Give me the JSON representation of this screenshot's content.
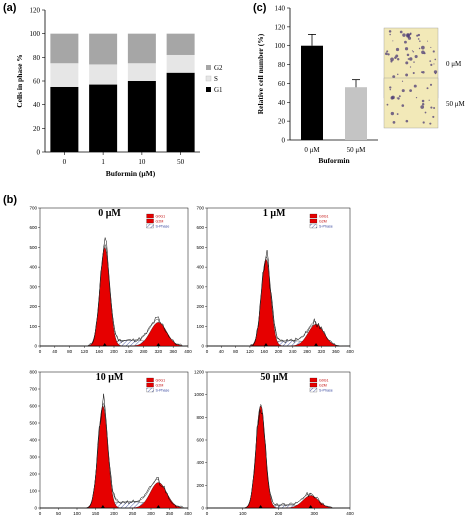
{
  "panels": {
    "a": "(a)",
    "b": "(b)",
    "c": "(c)"
  },
  "colors": {
    "g1": "#000000",
    "s": "#e6e6e6",
    "g2": "#a6a6a6",
    "red": "#e60000",
    "hatch": "#2f3f9a",
    "cell_bg": "#f2e9b8",
    "cell_stain": "#4b3a74"
  },
  "chart_data": [
    {
      "panel": "a",
      "type": "bar",
      "stacked": true,
      "categories": [
        "0",
        "1",
        "10",
        "50"
      ],
      "series": [
        {
          "name": "G1",
          "values": [
            55,
            57,
            60,
            67
          ]
        },
        {
          "name": "S",
          "values": [
            20,
            17,
            15,
            15
          ]
        },
        {
          "name": "G2",
          "values": [
            25,
            26,
            25,
            18
          ]
        }
      ],
      "legend_order": [
        "G2",
        "S",
        "G1"
      ],
      "legend_placement": "right",
      "xlabel": "Buformin (μM)",
      "ylabel": "Cells in phase %",
      "ylim": [
        0,
        120
      ],
      "yticks": [
        "0",
        "20",
        "40",
        "60",
        "80",
        "100",
        "120"
      ],
      "grid": false
    },
    {
      "panel": "c",
      "type": "bar",
      "categories": [
        "0 μM",
        "50 μM"
      ],
      "values": [
        100,
        56
      ],
      "errors": [
        12,
        8
      ],
      "xlabel": "Buformin",
      "ylabel": "Relative cell number (%)",
      "ylim": [
        0,
        140
      ],
      "yticks": [
        "0",
        "20",
        "40",
        "60",
        "80",
        "100",
        "120",
        "140"
      ],
      "image_labels": [
        "0 μM",
        "50 μM"
      ],
      "grid": false
    },
    {
      "panel": "b",
      "type": "area",
      "subtype": "flow-cytometry histogram",
      "histograms": [
        {
          "title": "0 μM",
          "xlim": [
            0,
            400
          ],
          "xticks": [
            "0",
            "40",
            "80",
            "120",
            "160",
            "200",
            "240",
            "280",
            "320",
            "360",
            "400"
          ],
          "ylim": [
            0,
            700
          ],
          "yticks": [
            "0",
            "100",
            "200",
            "300",
            "400",
            "500",
            "600",
            "700"
          ],
          "g1_peak_x": 175,
          "g1_peak_y": 500,
          "g2_peak_x": 320,
          "g2_peak_y": 120
        },
        {
          "title": "1 μM",
          "xlim": [
            0,
            400
          ],
          "xticks": [
            "0",
            "40",
            "80",
            "120",
            "160",
            "200",
            "240",
            "280",
            "320",
            "360",
            "400"
          ],
          "ylim": [
            0,
            700
          ],
          "yticks": [
            "0",
            "100",
            "200",
            "300",
            "400",
            "500",
            "600",
            "700"
          ],
          "g1_peak_x": 165,
          "g1_peak_y": 440,
          "g2_peak_x": 305,
          "g2_peak_y": 110
        },
        {
          "title": "10 μM",
          "xlim": [
            0,
            400
          ],
          "xticks": [
            "0",
            "50",
            "100",
            "150",
            "200",
            "250",
            "300",
            "350",
            "400"
          ],
          "ylim": [
            0,
            800
          ],
          "yticks": [
            "0",
            "100",
            "200",
            "300",
            "400",
            "500",
            "600",
            "700",
            "800"
          ],
          "g1_peak_x": 170,
          "g1_peak_y": 600,
          "g2_peak_x": 320,
          "g2_peak_y": 150
        },
        {
          "title": "50 μM",
          "xlim": [
            0,
            400
          ],
          "xticks": [
            "0",
            "100",
            "200",
            "300",
            "400"
          ],
          "ylim": [
            0,
            1200
          ],
          "yticks": [
            "0",
            "200",
            "400",
            "600",
            "800",
            "1000",
            "1200"
          ],
          "g1_peak_x": 150,
          "g1_peak_y": 900,
          "g2_peak_x": 290,
          "g2_peak_y": 110
        }
      ],
      "legend": [
        "G0G1",
        "G2M",
        "S-Phase"
      ]
    }
  ]
}
